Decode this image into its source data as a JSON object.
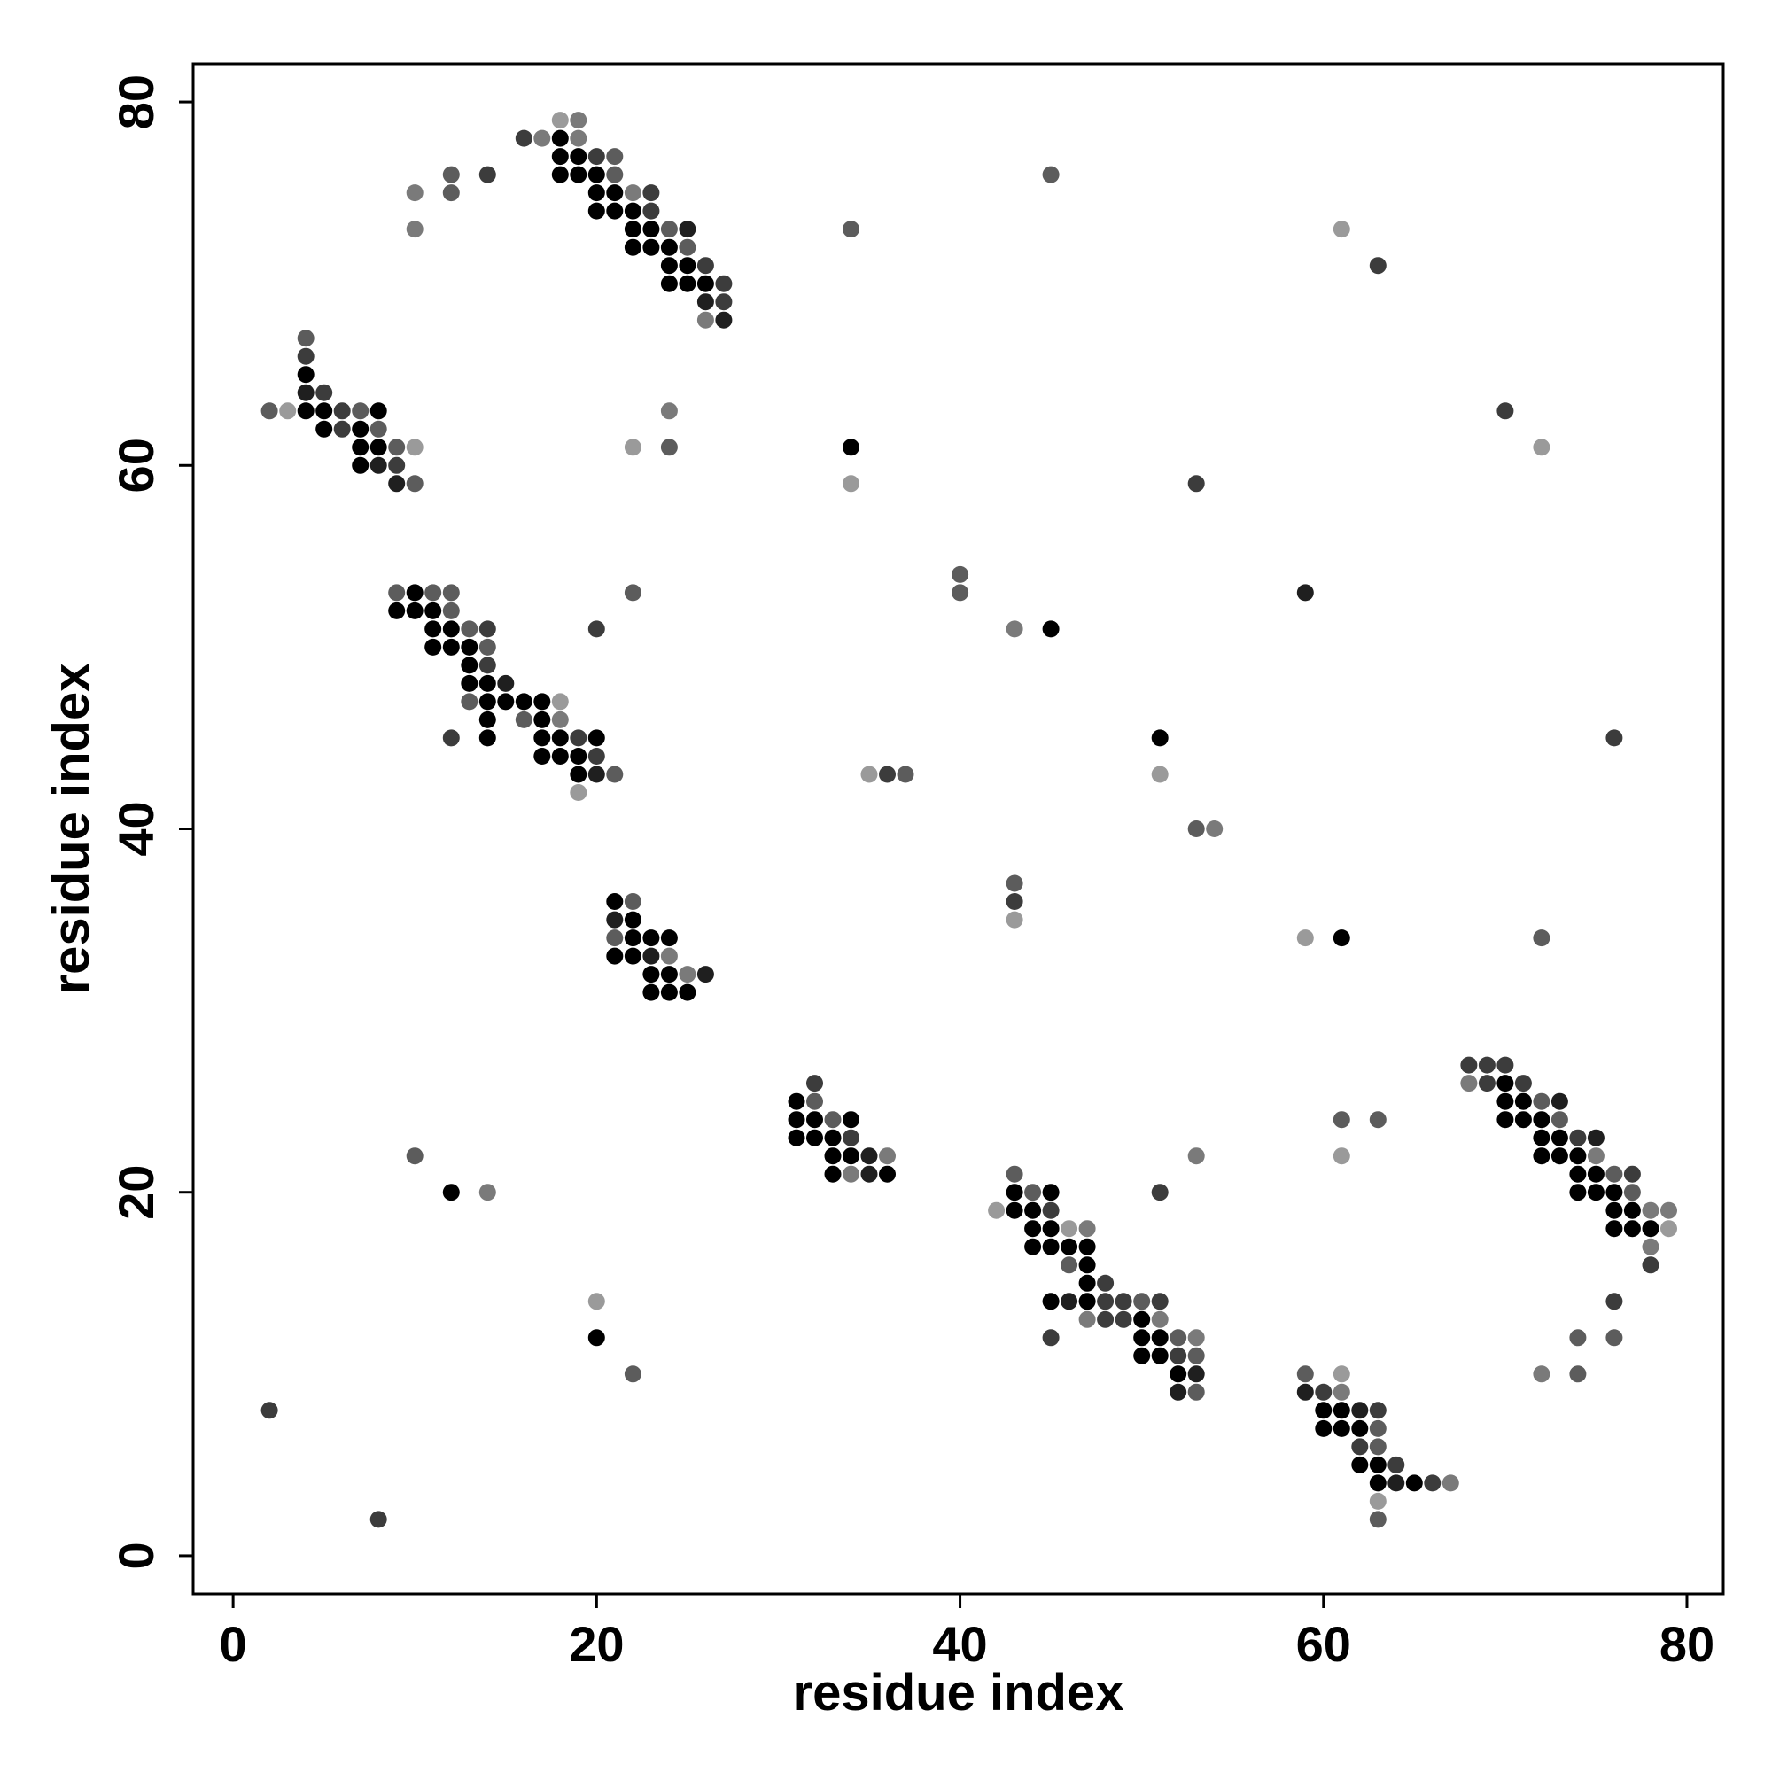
{
  "chart_data": {
    "type": "scatter",
    "title": "",
    "xlabel": "residue index",
    "ylabel": "residue index",
    "xlim": [
      -2.2,
      82
    ],
    "ylim": [
      -2.1,
      82.1
    ],
    "xticks": [
      0,
      20,
      40,
      60,
      80
    ],
    "yticks": [
      0,
      20,
      40,
      60,
      80
    ],
    "xtick_labels": [
      "0",
      "20",
      "40",
      "60",
      "80"
    ],
    "ytick_labels": [
      "0",
      "20",
      "40",
      "60",
      "80"
    ],
    "grid": false,
    "legend": "none",
    "point_color_scale": "grayscale, darker = stronger contact",
    "shades": {
      "1": "#000000",
      "2": "#1f1f1f",
      "3": "#3c3c3c",
      "4": "#5c5c5c",
      "5": "#7a7a7a",
      "6": "#9a9a9a"
    },
    "points": [
      [
        18,
        79,
        6
      ],
      [
        19,
        79,
        5
      ],
      [
        16,
        78,
        3
      ],
      [
        17,
        78,
        5
      ],
      [
        18,
        78,
        1
      ],
      [
        19,
        78,
        5
      ],
      [
        18,
        77,
        1
      ],
      [
        19,
        77,
        1
      ],
      [
        20,
        77,
        3
      ],
      [
        21,
        77,
        4
      ],
      [
        18,
        76,
        1
      ],
      [
        19,
        76,
        1
      ],
      [
        20,
        76,
        1
      ],
      [
        21,
        76,
        4
      ],
      [
        20,
        75,
        1
      ],
      [
        21,
        75,
        1
      ],
      [
        22,
        75,
        5
      ],
      [
        23,
        75,
        3
      ],
      [
        20,
        74,
        1
      ],
      [
        21,
        74,
        1
      ],
      [
        22,
        74,
        1
      ],
      [
        23,
        74,
        3
      ],
      [
        22,
        73,
        1
      ],
      [
        23,
        73,
        1
      ],
      [
        24,
        73,
        4
      ],
      [
        25,
        73,
        2
      ],
      [
        22,
        72,
        1
      ],
      [
        23,
        72,
        1
      ],
      [
        24,
        72,
        1
      ],
      [
        25,
        72,
        4
      ],
      [
        24,
        71,
        1
      ],
      [
        25,
        71,
        1
      ],
      [
        26,
        71,
        3
      ],
      [
        24,
        70,
        1
      ],
      [
        25,
        70,
        1
      ],
      [
        26,
        70,
        1
      ],
      [
        27,
        70,
        3
      ],
      [
        26,
        69,
        2
      ],
      [
        27,
        69,
        3
      ],
      [
        26,
        68,
        5
      ],
      [
        27,
        68,
        2
      ],
      [
        12,
        76,
        4
      ],
      [
        14,
        76,
        3
      ],
      [
        10,
        75,
        5
      ],
      [
        12,
        75,
        4
      ],
      [
        10,
        73,
        5
      ],
      [
        45,
        76,
        4
      ],
      [
        34,
        73,
        4
      ],
      [
        61,
        73,
        6
      ],
      [
        63,
        71,
        3
      ],
      [
        4,
        67,
        4
      ],
      [
        4,
        66,
        3
      ],
      [
        4,
        65,
        1
      ],
      [
        4,
        64,
        2
      ],
      [
        5,
        64,
        3
      ],
      [
        2,
        63,
        4
      ],
      [
        3,
        63,
        6
      ],
      [
        4,
        63,
        1
      ],
      [
        5,
        63,
        1
      ],
      [
        6,
        63,
        3
      ],
      [
        7,
        63,
        4
      ],
      [
        8,
        63,
        1
      ],
      [
        5,
        62,
        1
      ],
      [
        6,
        62,
        3
      ],
      [
        7,
        62,
        1
      ],
      [
        8,
        62,
        4
      ],
      [
        7,
        61,
        1
      ],
      [
        8,
        61,
        1
      ],
      [
        9,
        61,
        4
      ],
      [
        10,
        61,
        6
      ],
      [
        7,
        60,
        1
      ],
      [
        8,
        60,
        2
      ],
      [
        9,
        60,
        3
      ],
      [
        9,
        59,
        2
      ],
      [
        10,
        59,
        4
      ],
      [
        22,
        61,
        6
      ],
      [
        24,
        63,
        5
      ],
      [
        24,
        61,
        4
      ],
      [
        34,
        61,
        1
      ],
      [
        34,
        59,
        6
      ],
      [
        53,
        59,
        3
      ],
      [
        70,
        63,
        3
      ],
      [
        72,
        61,
        6
      ],
      [
        9,
        53,
        4
      ],
      [
        10,
        53,
        1
      ],
      [
        11,
        53,
        4
      ],
      [
        12,
        53,
        4
      ],
      [
        9,
        52,
        1
      ],
      [
        10,
        52,
        1
      ],
      [
        11,
        52,
        1
      ],
      [
        12,
        52,
        4
      ],
      [
        11,
        51,
        1
      ],
      [
        12,
        51,
        1
      ],
      [
        13,
        51,
        4
      ],
      [
        14,
        51,
        3
      ],
      [
        11,
        50,
        1
      ],
      [
        12,
        50,
        1
      ],
      [
        13,
        50,
        1
      ],
      [
        14,
        50,
        4
      ],
      [
        13,
        49,
        1
      ],
      [
        14,
        49,
        3
      ],
      [
        13,
        48,
        1
      ],
      [
        14,
        48,
        1
      ],
      [
        15,
        48,
        2
      ],
      [
        13,
        47,
        4
      ],
      [
        14,
        47,
        1
      ],
      [
        15,
        47,
        1
      ],
      [
        16,
        47,
        1
      ],
      [
        17,
        47,
        1
      ],
      [
        18,
        47,
        6
      ],
      [
        14,
        46,
        1
      ],
      [
        16,
        46,
        4
      ],
      [
        17,
        46,
        1
      ],
      [
        18,
        46,
        5
      ],
      [
        12,
        45,
        3
      ],
      [
        14,
        45,
        1
      ],
      [
        17,
        45,
        1
      ],
      [
        18,
        45,
        1
      ],
      [
        19,
        45,
        3
      ],
      [
        20,
        45,
        1
      ],
      [
        17,
        44,
        1
      ],
      [
        18,
        44,
        1
      ],
      [
        19,
        44,
        1
      ],
      [
        20,
        44,
        3
      ],
      [
        19,
        43,
        1
      ],
      [
        20,
        43,
        2
      ],
      [
        21,
        43,
        4
      ],
      [
        19,
        42,
        6
      ],
      [
        22,
        53,
        4
      ],
      [
        20,
        51,
        3
      ],
      [
        40,
        54,
        4
      ],
      [
        40,
        53,
        4
      ],
      [
        43,
        51,
        5
      ],
      [
        45,
        51,
        1
      ],
      [
        59,
        53,
        2
      ],
      [
        51,
        45,
        1
      ],
      [
        76,
        45,
        3
      ],
      [
        35,
        43,
        6
      ],
      [
        36,
        43,
        3
      ],
      [
        37,
        43,
        4
      ],
      [
        51,
        43,
        6
      ],
      [
        53,
        40,
        4
      ],
      [
        54,
        40,
        5
      ],
      [
        21,
        36,
        1
      ],
      [
        22,
        36,
        4
      ],
      [
        21,
        35,
        2
      ],
      [
        22,
        35,
        1
      ],
      [
        21,
        34,
        4
      ],
      [
        22,
        34,
        1
      ],
      [
        23,
        34,
        1
      ],
      [
        24,
        34,
        1
      ],
      [
        21,
        33,
        1
      ],
      [
        22,
        33,
        1
      ],
      [
        23,
        33,
        2
      ],
      [
        24,
        33,
        5
      ],
      [
        23,
        32,
        1
      ],
      [
        24,
        32,
        1
      ],
      [
        25,
        32,
        5
      ],
      [
        26,
        32,
        2
      ],
      [
        23,
        31,
        1
      ],
      [
        24,
        31,
        1
      ],
      [
        25,
        31,
        1
      ],
      [
        43,
        37,
        4
      ],
      [
        43,
        36,
        3
      ],
      [
        43,
        35,
        6
      ],
      [
        59,
        34,
        6
      ],
      [
        61,
        34,
        1
      ],
      [
        72,
        34,
        4
      ],
      [
        32,
        26,
        3
      ],
      [
        31,
        25,
        1
      ],
      [
        32,
        25,
        4
      ],
      [
        31,
        24,
        1
      ],
      [
        32,
        24,
        1
      ],
      [
        33,
        24,
        4
      ],
      [
        34,
        24,
        1
      ],
      [
        31,
        23,
        1
      ],
      [
        32,
        23,
        1
      ],
      [
        33,
        23,
        1
      ],
      [
        34,
        23,
        3
      ],
      [
        33,
        22,
        1
      ],
      [
        34,
        22,
        1
      ],
      [
        35,
        22,
        2
      ],
      [
        36,
        22,
        5
      ],
      [
        33,
        21,
        1
      ],
      [
        34,
        21,
        5
      ],
      [
        35,
        21,
        2
      ],
      [
        36,
        21,
        1
      ],
      [
        68,
        27,
        3
      ],
      [
        69,
        27,
        3
      ],
      [
        70,
        27,
        3
      ],
      [
        68,
        26,
        5
      ],
      [
        69,
        26,
        3
      ],
      [
        70,
        26,
        1
      ],
      [
        71,
        26,
        3
      ],
      [
        70,
        25,
        1
      ],
      [
        71,
        25,
        1
      ],
      [
        72,
        25,
        4
      ],
      [
        73,
        25,
        2
      ],
      [
        70,
        24,
        1
      ],
      [
        71,
        24,
        1
      ],
      [
        72,
        24,
        1
      ],
      [
        73,
        24,
        4
      ],
      [
        72,
        23,
        1
      ],
      [
        73,
        23,
        1
      ],
      [
        74,
        23,
        3
      ],
      [
        75,
        23,
        2
      ],
      [
        72,
        22,
        1
      ],
      [
        73,
        22,
        1
      ],
      [
        74,
        22,
        1
      ],
      [
        75,
        22,
        5
      ],
      [
        74,
        21,
        1
      ],
      [
        75,
        21,
        1
      ],
      [
        76,
        21,
        4
      ],
      [
        77,
        21,
        3
      ],
      [
        74,
        20,
        1
      ],
      [
        75,
        20,
        1
      ],
      [
        76,
        20,
        1
      ],
      [
        77,
        20,
        4
      ],
      [
        76,
        19,
        1
      ],
      [
        77,
        19,
        1
      ],
      [
        78,
        19,
        5
      ],
      [
        79,
        19,
        5
      ],
      [
        76,
        18,
        1
      ],
      [
        77,
        18,
        1
      ],
      [
        78,
        18,
        1
      ],
      [
        79,
        18,
        6
      ],
      [
        78,
        17,
        5
      ],
      [
        78,
        16,
        3
      ],
      [
        61,
        24,
        4
      ],
      [
        63,
        24,
        4
      ],
      [
        61,
        22,
        6
      ],
      [
        53,
        22,
        5
      ],
      [
        43,
        21,
        4
      ],
      [
        43,
        20,
        1
      ],
      [
        44,
        20,
        4
      ],
      [
        45,
        20,
        1
      ],
      [
        42,
        19,
        6
      ],
      [
        43,
        19,
        1
      ],
      [
        44,
        19,
        1
      ],
      [
        45,
        19,
        3
      ],
      [
        44,
        18,
        1
      ],
      [
        45,
        18,
        1
      ],
      [
        46,
        18,
        6
      ],
      [
        47,
        18,
        5
      ],
      [
        44,
        17,
        1
      ],
      [
        45,
        17,
        1
      ],
      [
        46,
        17,
        1
      ],
      [
        47,
        17,
        1
      ],
      [
        46,
        16,
        4
      ],
      [
        47,
        16,
        1
      ],
      [
        47,
        15,
        1
      ],
      [
        48,
        15,
        3
      ],
      [
        45,
        14,
        1
      ],
      [
        46,
        14,
        2
      ],
      [
        47,
        14,
        1
      ],
      [
        48,
        14,
        3
      ],
      [
        49,
        14,
        3
      ],
      [
        50,
        14,
        4
      ],
      [
        51,
        14,
        3
      ],
      [
        47,
        13,
        5
      ],
      [
        48,
        13,
        3
      ],
      [
        49,
        13,
        3
      ],
      [
        50,
        13,
        1
      ],
      [
        51,
        13,
        5
      ],
      [
        45,
        12,
        3
      ],
      [
        50,
        12,
        1
      ],
      [
        51,
        12,
        1
      ],
      [
        52,
        12,
        4
      ],
      [
        53,
        12,
        5
      ],
      [
        50,
        11,
        1
      ],
      [
        51,
        11,
        1
      ],
      [
        52,
        11,
        3
      ],
      [
        53,
        11,
        4
      ],
      [
        52,
        10,
        1
      ],
      [
        53,
        10,
        2
      ],
      [
        52,
        9,
        2
      ],
      [
        53,
        9,
        4
      ],
      [
        51,
        20,
        3
      ],
      [
        59,
        10,
        4
      ],
      [
        61,
        10,
        6
      ],
      [
        59,
        9,
        2
      ],
      [
        60,
        9,
        3
      ],
      [
        61,
        9,
        5
      ],
      [
        60,
        8,
        1
      ],
      [
        61,
        8,
        1
      ],
      [
        62,
        8,
        2
      ],
      [
        63,
        8,
        3
      ],
      [
        60,
        7,
        1
      ],
      [
        61,
        7,
        1
      ],
      [
        62,
        7,
        1
      ],
      [
        63,
        7,
        4
      ],
      [
        62,
        6,
        3
      ],
      [
        63,
        6,
        4
      ],
      [
        62,
        5,
        1
      ],
      [
        63,
        5,
        1
      ],
      [
        64,
        5,
        3
      ],
      [
        63,
        4,
        1
      ],
      [
        64,
        4,
        2
      ],
      [
        65,
        4,
        1
      ],
      [
        66,
        4,
        3
      ],
      [
        67,
        4,
        5
      ],
      [
        63,
        3,
        6
      ],
      [
        63,
        2,
        4
      ],
      [
        76,
        14,
        3
      ],
      [
        74,
        12,
        4
      ],
      [
        76,
        12,
        4
      ],
      [
        72,
        10,
        5
      ],
      [
        74,
        10,
        4
      ],
      [
        10,
        22,
        4
      ],
      [
        12,
        20,
        1
      ],
      [
        14,
        20,
        5
      ],
      [
        20,
        14,
        6
      ],
      [
        20,
        12,
        1
      ],
      [
        22,
        10,
        4
      ],
      [
        2,
        8,
        3
      ],
      [
        8,
        2,
        3
      ]
    ]
  }
}
